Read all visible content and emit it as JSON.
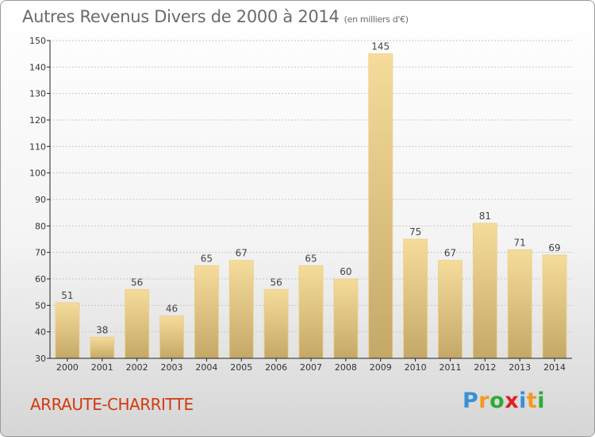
{
  "header": {
    "title": "Autres Revenus Divers de 2000 à 2014",
    "unit": "(en milliers d'€)"
  },
  "footer": {
    "commune": "ARRAUTE-CHARRITTE",
    "logo": {
      "text": "Proxiti",
      "letters": [
        "P",
        "r",
        "o",
        "x",
        "i",
        "t",
        "i"
      ],
      "colors": [
        "#3a8fd6",
        "#f29a1c",
        "#2eaa3a",
        "#e02020",
        "#3a8fd6",
        "#f29a1c",
        "#2eaa3a"
      ]
    }
  },
  "colors": {
    "bar_light": "#f6dc9a",
    "bar_dark": "#c4a868",
    "axis": "#222222",
    "grid": "#c8c8c8"
  },
  "chart_data": {
    "type": "bar",
    "title": "Autres Revenus Divers de 2000 à 2014",
    "subtitle": "(en milliers d'€)",
    "categories": [
      "2000",
      "2001",
      "2002",
      "2003",
      "2004",
      "2005",
      "2006",
      "2007",
      "2008",
      "2009",
      "2010",
      "2011",
      "2012",
      "2013",
      "2014"
    ],
    "values": [
      51,
      38,
      56,
      46,
      65,
      67,
      56,
      65,
      60,
      145,
      75,
      67,
      81,
      71,
      69
    ],
    "ylim": [
      30,
      150
    ],
    "yticks": [
      30,
      40,
      50,
      60,
      70,
      80,
      90,
      100,
      110,
      120,
      130,
      140,
      150
    ],
    "grid": true,
    "xlabel": "",
    "ylabel": ""
  }
}
